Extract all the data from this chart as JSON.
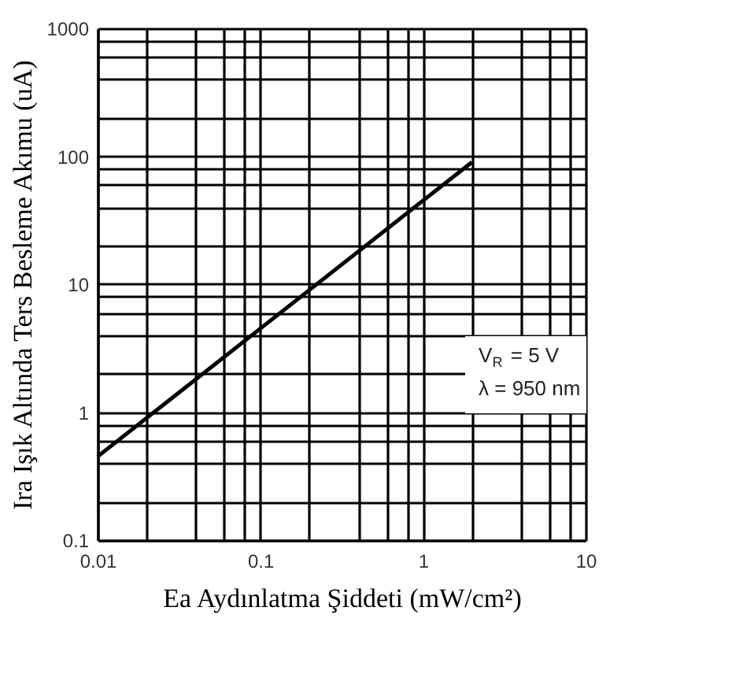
{
  "chart_data": {
    "type": "line",
    "xlabel": "Ea Aydınlatma Şiddeti (mW/cm²)",
    "ylabel": "Ira Işık Altında Ters Besleme Akımu (uA)",
    "x": [
      0.01,
      0.1,
      1,
      2
    ],
    "series": [
      {
        "color": "#000000",
        "values": [
          0.45,
          4.5,
          45,
          90
        ]
      }
    ],
    "log": "xy",
    "xlim": [
      0.01,
      10
    ],
    "ylim": [
      0.1,
      1000
    ],
    "xticks": [
      0.01,
      {
        "value": 0.02,
        "label": null
      },
      {
        "value": 0.04,
        "label": null
      },
      {
        "value": 0.06,
        "label": null
      },
      {
        "value": 0.08,
        "label": null
      },
      0.1,
      {
        "value": 0.2,
        "label": null
      },
      {
        "value": 0.4,
        "label": null
      },
      {
        "value": 0.6,
        "label": null
      },
      {
        "value": 0.8,
        "label": null
      },
      1,
      {
        "value": 2,
        "label": null
      },
      {
        "value": 4,
        "label": null
      },
      {
        "value": 6,
        "label": null
      },
      {
        "value": 8,
        "label": null
      },
      10
    ],
    "yticks": [
      0.1,
      {
        "value": 0.2,
        "label": null
      },
      {
        "value": 0.4,
        "label": null
      },
      {
        "value": 0.6,
        "label": null
      },
      {
        "value": 0.8,
        "label": null
      },
      1,
      {
        "value": 2,
        "label": null
      },
      {
        "value": 4,
        "label": null
      },
      {
        "value": 6,
        "label": null
      },
      {
        "value": 8,
        "label": null
      },
      10,
      {
        "value": 20,
        "label": null
      },
      {
        "value": 40,
        "label": null
      },
      {
        "value": 60,
        "label": null
      },
      {
        "value": 80,
        "label": null
      },
      100,
      {
        "value": 200,
        "label": null
      },
      {
        "value": 400,
        "label": null
      },
      {
        "value": 600,
        "label": null
      },
      {
        "value": 800,
        "label": null
      },
      1000
    ],
    "grid": true,
    "marker": "none",
    "line_style": "solid",
    "annotations": [
      "V$_{R}$ = 5 V",
      "λ = 950 nm"
    ]
  }
}
